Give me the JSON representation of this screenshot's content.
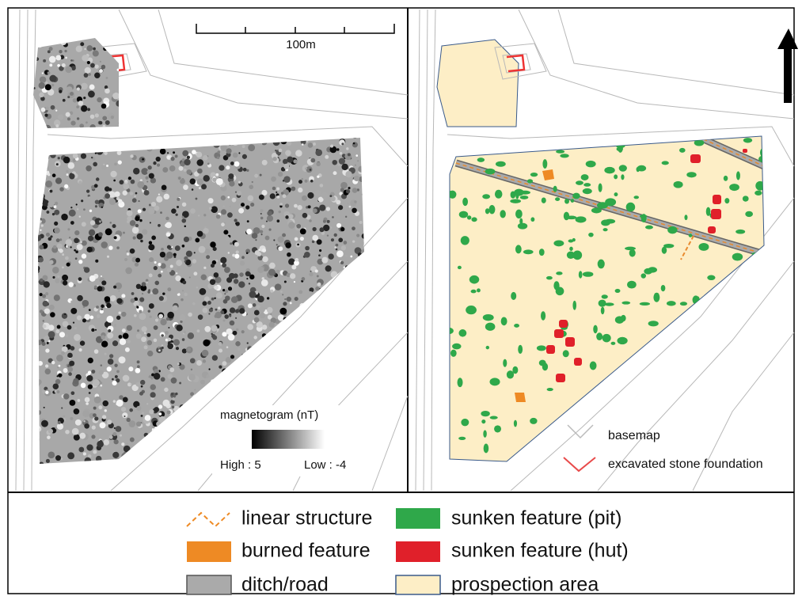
{
  "left_panel": {
    "scale_bar": "100m",
    "magnetogram_legend": {
      "title": "magnetogram (nT)",
      "high": "High : 5",
      "low": "Low : -4"
    }
  },
  "right_panel": {
    "map_legend": [
      "basemap",
      "excavated stone foundation"
    ]
  },
  "legend": {
    "items": [
      "linear structure",
      "burned feature",
      "ditch/road",
      "sunken feature (pit)",
      "sunken feature (hut)",
      "prospection area"
    ]
  }
}
